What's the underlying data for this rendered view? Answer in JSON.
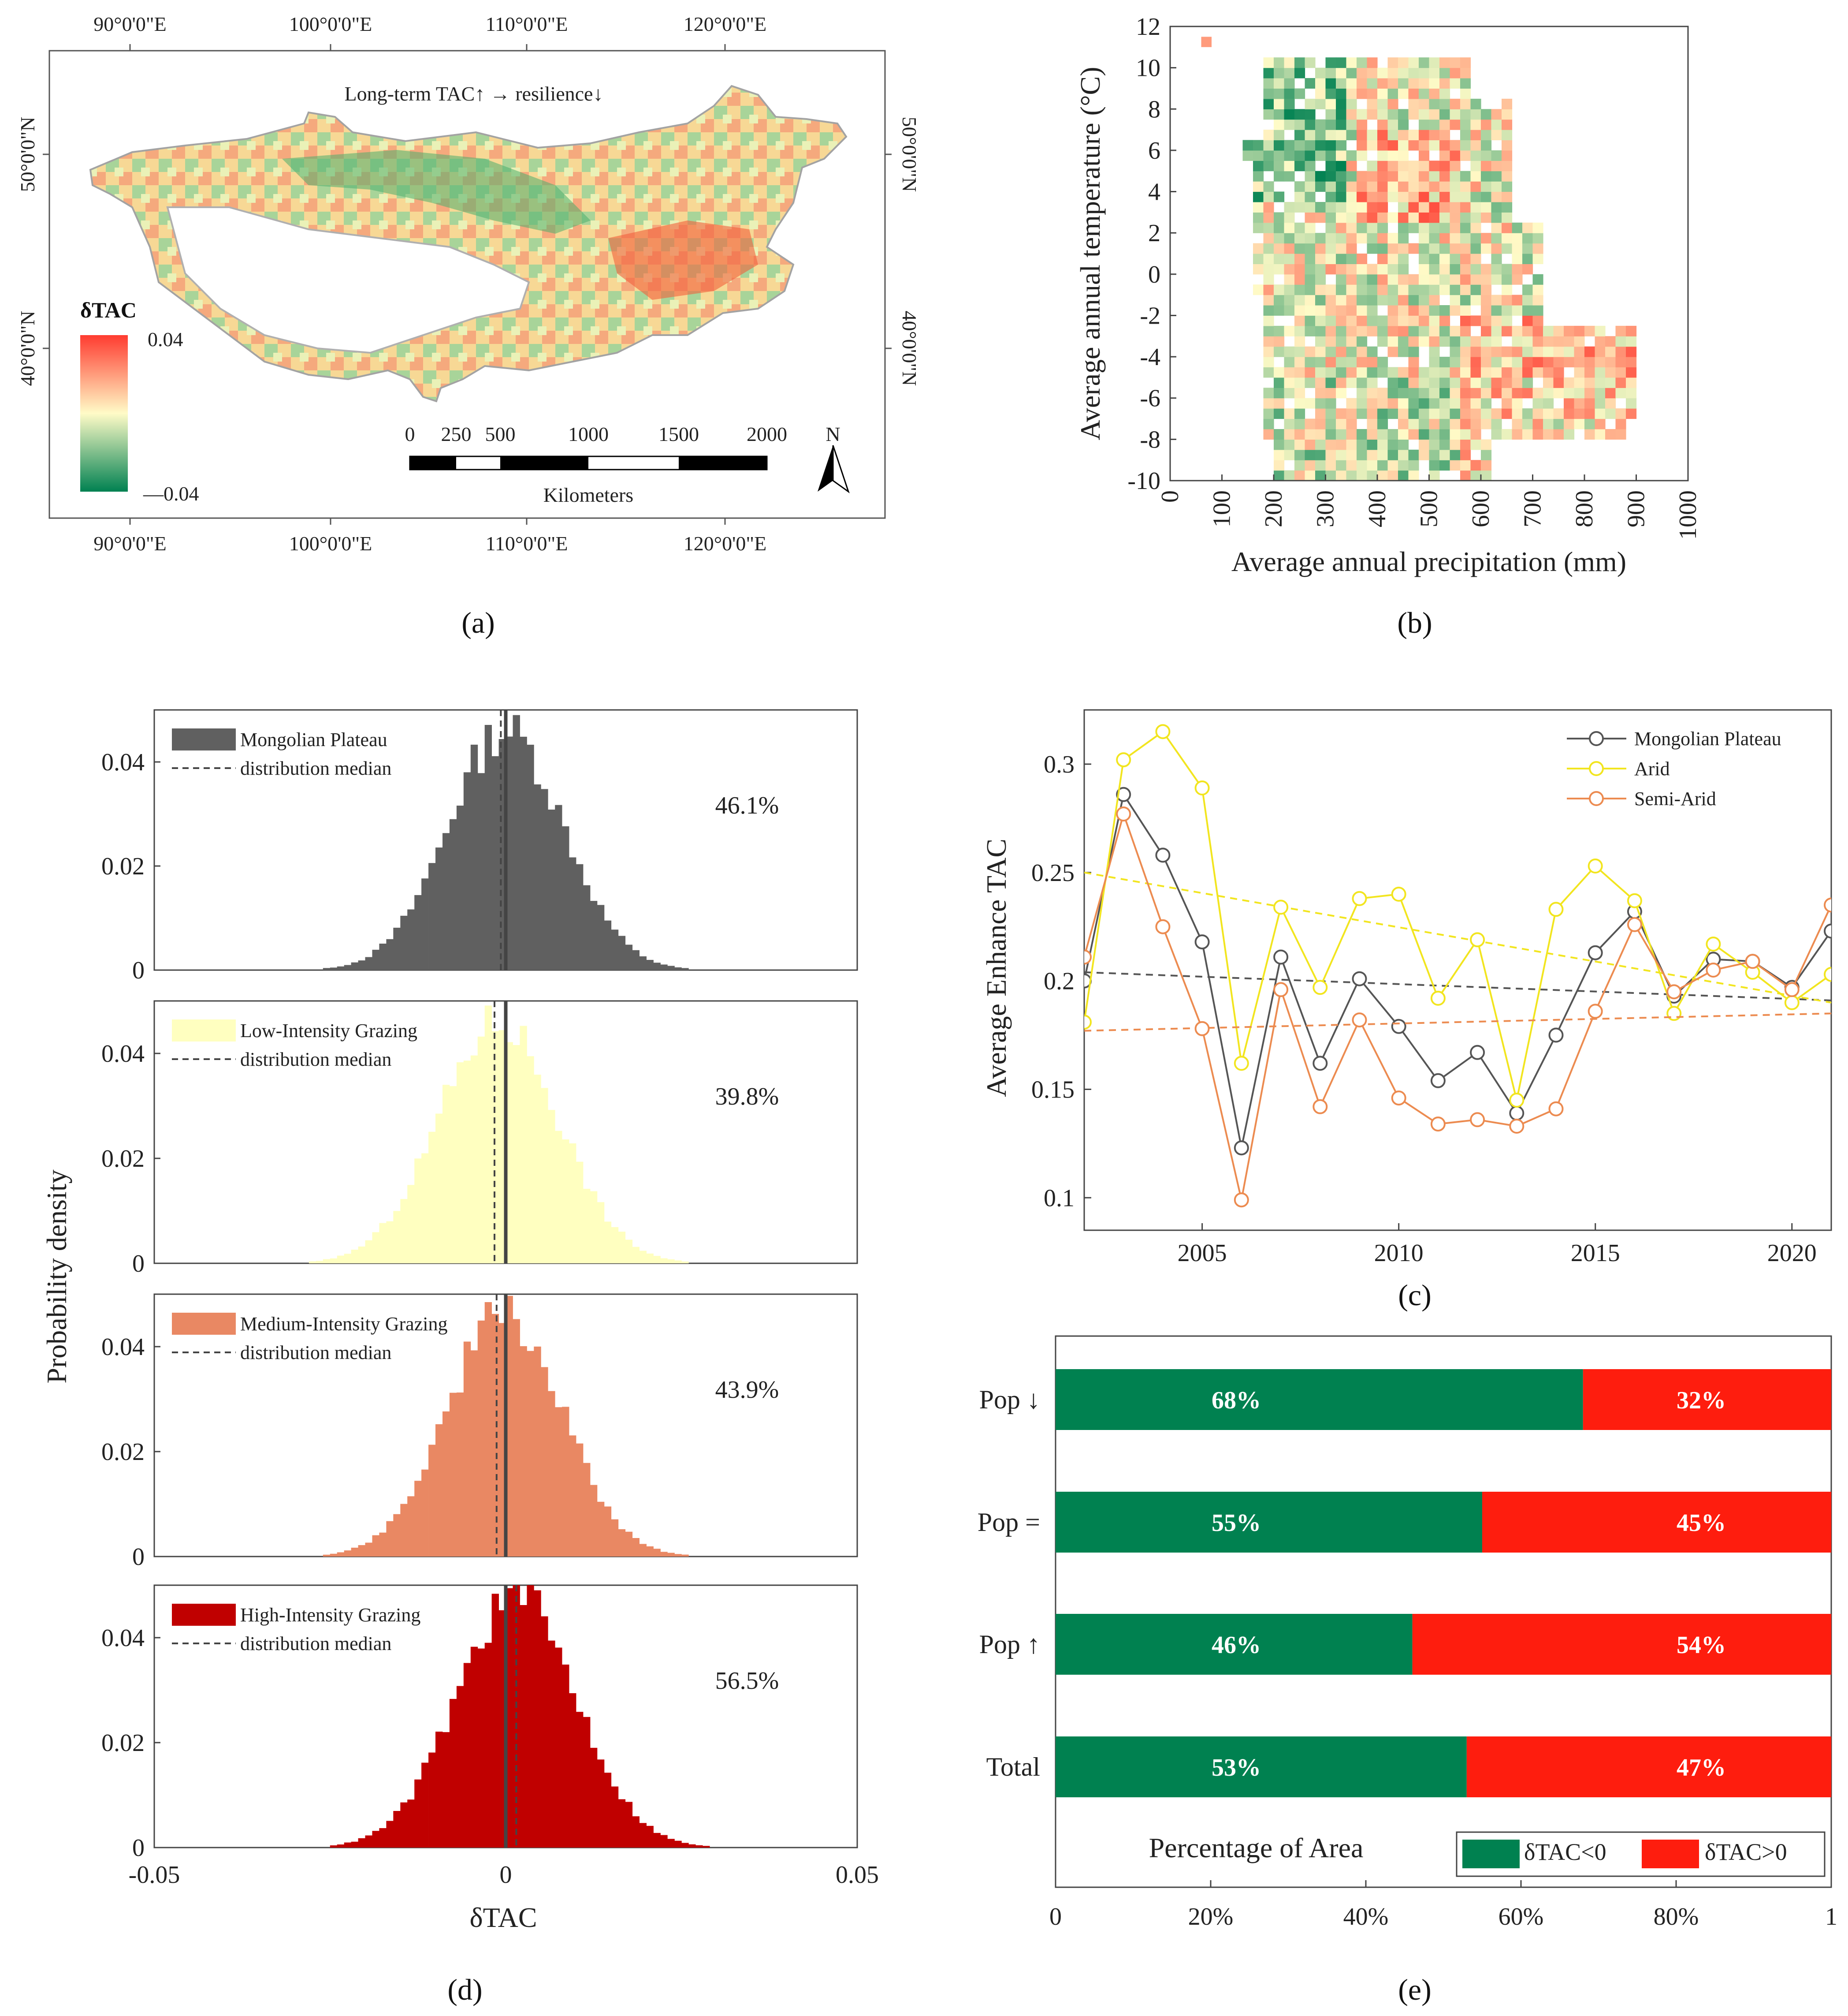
{
  "panels": {
    "a": {
      "tag": "(a)"
    },
    "b": {
      "tag": "(b)"
    },
    "c": {
      "tag": "(c)"
    },
    "d": {
      "tag": "(d)"
    },
    "e": {
      "tag": "(e)"
    }
  },
  "colors": {
    "grey": "#606060",
    "yellow": "#ffffc0",
    "orange": "#e98863",
    "darkred": "#c00000",
    "green": "#008150",
    "red": "#fe1d0e",
    "line_gray": "#555555",
    "line_yellow": "#f2e51f",
    "line_orange": "#ec8b50",
    "scale_low": "#008151",
    "scale_mid": "#fffbc7",
    "scale_high": "#ff3b30"
  },
  "chart_data": [
    {
      "id": "a",
      "type": "heatmap",
      "title": "Long-term TAC↑  → resilience↓",
      "lon_labels": [
        "90°0'0\"E",
        "100°0'0\"E",
        "110°0'0\"E",
        "120°0'0\"E"
      ],
      "lat_labels": [
        "50°0'0\"N",
        "40°0'0\"N"
      ],
      "colorbar": {
        "label": "δTAC",
        "max_label": "0.04",
        "min_label": "—0.04"
      },
      "scalebar": {
        "ticks": [
          "0",
          "250",
          "500",
          "1000",
          "1500",
          "2000"
        ],
        "unit": "Kilometers"
      },
      "north": "N"
    },
    {
      "id": "b",
      "type": "heatmap",
      "xlabel": "Average annual precipitation (mm)",
      "ylabel": "Average annual temperature (°C)",
      "xlim": [
        0,
        1000
      ],
      "ylim": [
        -10,
        12
      ],
      "x_ticks": [
        "0",
        "100",
        "200",
        "300",
        "400",
        "500",
        "600",
        "700",
        "800",
        "900",
        "1000"
      ],
      "y_ticks": [
        "-10",
        "-8",
        "-6",
        "-4",
        "-2",
        "0",
        "2",
        "4",
        "6",
        "8",
        "10",
        "12"
      ]
    },
    {
      "id": "c",
      "type": "line",
      "ylabel": "Average Enhance TAC",
      "xlim": [
        2002,
        2021
      ],
      "ylim": [
        0.085,
        0.325
      ],
      "x_ticks": [
        "2005",
        "2010",
        "2015",
        "2020"
      ],
      "y_ticks": [
        "0.1",
        "0.15",
        "0.2",
        "0.25",
        "0.3"
      ],
      "x": [
        2002,
        2003,
        2004,
        2005,
        2006,
        2007,
        2008,
        2009,
        2010,
        2011,
        2012,
        2013,
        2014,
        2015,
        2016,
        2017,
        2018,
        2019,
        2020,
        2021
      ],
      "series": [
        {
          "name": "Mongolian Plateau",
          "values": [
            0.2,
            0.286,
            0.258,
            0.218,
            0.123,
            0.211,
            0.162,
            0.201,
            0.179,
            0.154,
            0.167,
            0.139,
            0.175,
            0.213,
            0.232,
            0.193,
            0.21,
            0.209,
            0.197,
            0.223
          ],
          "trend": [
            0.204,
            0.191
          ]
        },
        {
          "name": "Arid",
          "values": [
            0.181,
            0.302,
            0.315,
            0.289,
            0.162,
            0.234,
            0.197,
            0.238,
            0.24,
            0.192,
            0.219,
            0.145,
            0.233,
            0.253,
            0.237,
            0.185,
            0.217,
            0.204,
            0.19,
            0.203
          ],
          "trend": [
            0.25,
            0.19
          ]
        },
        {
          "name": "Semi-Arid",
          "values": [
            0.211,
            0.277,
            0.225,
            0.178,
            0.099,
            0.196,
            0.142,
            0.182,
            0.146,
            0.134,
            0.136,
            0.133,
            0.141,
            0.186,
            0.226,
            0.195,
            0.205,
            0.209,
            0.196,
            0.235
          ],
          "trend": [
            0.177,
            0.185
          ]
        }
      ]
    },
    {
      "id": "d",
      "type": "bar",
      "xlabel": "δTAC",
      "ylabel": "Probability density",
      "xlim": [
        -0.05,
        0.05
      ],
      "ylim": [
        0,
        0.05
      ],
      "x_ticks": [
        "-0.05",
        "0",
        "0.05"
      ],
      "y_ticks": [
        "0",
        "0.02",
        "0.04"
      ],
      "median_legend": "distribution median",
      "series": [
        {
          "name": "Mongolian Plateau",
          "mu": 0.0,
          "sd": 0.0082,
          "peak": 0.046,
          "median": -0.0007,
          "pct": "46.1%"
        },
        {
          "name": "Low-Intensity Grazing",
          "mu": -0.001,
          "sd": 0.0085,
          "peak": 0.046,
          "median": -0.0016,
          "pct": "39.8%"
        },
        {
          "name": "Medium-Intensity Grazing",
          "mu": -0.0002,
          "sd": 0.0082,
          "peak": 0.046,
          "median": -0.0013,
          "pct": "43.9%"
        },
        {
          "name": "High-Intensity Grazing",
          "mu": 0.0015,
          "sd": 0.0085,
          "peak": 0.048,
          "median": 0.0015,
          "pct": "56.5%"
        }
      ]
    },
    {
      "id": "e",
      "type": "bar",
      "xlabel": "Percentage of Area",
      "x_ticks": [
        "0",
        "20%",
        "40%",
        "60%",
        "80%",
        "1"
      ],
      "categories": [
        "Pop ↓",
        "Pop =",
        "Pop ↑",
        "Total"
      ],
      "series": [
        {
          "name": "δTAC<0",
          "values": [
            68,
            55,
            46,
            53
          ],
          "labels": [
            "68%",
            "55%",
            "46%",
            "53%"
          ]
        },
        {
          "name": "δTAC>0",
          "values": [
            32,
            45,
            54,
            47
          ],
          "labels": [
            "32%",
            "45%",
            "54%",
            "47%"
          ]
        }
      ]
    }
  ]
}
